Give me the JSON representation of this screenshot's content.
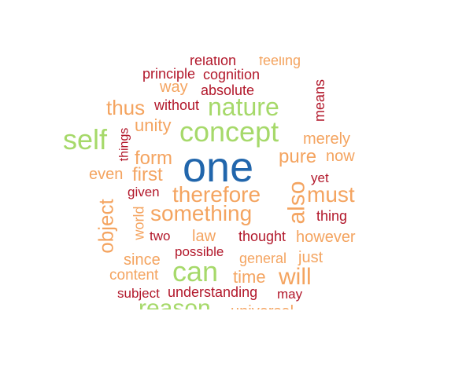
{
  "palette": {
    "dark_blue": "#2166ac",
    "green": "#a6d96a",
    "orange": "#f4a460",
    "red": "#b2182b"
  },
  "words": [
    {
      "text": "one",
      "color": "dark_blue",
      "rotated": false
    },
    {
      "text": "concept",
      "color": "green",
      "rotated": false
    },
    {
      "text": "nature",
      "color": "green",
      "rotated": false
    },
    {
      "text": "self",
      "color": "green",
      "rotated": false
    },
    {
      "text": "can",
      "color": "green",
      "rotated": false
    },
    {
      "text": "reason",
      "color": "green",
      "rotated": false
    },
    {
      "text": "will",
      "color": "orange",
      "rotated": false
    },
    {
      "text": "also",
      "color": "orange",
      "rotated": true
    },
    {
      "text": "therefore",
      "color": "orange",
      "rotated": false
    },
    {
      "text": "something",
      "color": "orange",
      "rotated": false
    },
    {
      "text": "must",
      "color": "orange",
      "rotated": false
    },
    {
      "text": "pure",
      "color": "orange",
      "rotated": false
    },
    {
      "text": "object",
      "color": "orange",
      "rotated": true
    },
    {
      "text": "thus",
      "color": "orange",
      "rotated": false
    },
    {
      "text": "form",
      "color": "orange",
      "rotated": false
    },
    {
      "text": "first",
      "color": "orange",
      "rotated": false
    },
    {
      "text": "unity",
      "color": "orange",
      "rotated": false
    },
    {
      "text": "merely",
      "color": "orange",
      "rotated": false
    },
    {
      "text": "now",
      "color": "orange",
      "rotated": false
    },
    {
      "text": "even",
      "color": "orange",
      "rotated": false
    },
    {
      "text": "way",
      "color": "orange",
      "rotated": false
    },
    {
      "text": "law",
      "color": "orange",
      "rotated": false
    },
    {
      "text": "however",
      "color": "orange",
      "rotated": false
    },
    {
      "text": "just",
      "color": "orange",
      "rotated": false
    },
    {
      "text": "general",
      "color": "orange",
      "rotated": false
    },
    {
      "text": "time",
      "color": "orange",
      "rotated": false
    },
    {
      "text": "since",
      "color": "orange",
      "rotated": false
    },
    {
      "text": "content",
      "color": "orange",
      "rotated": false
    },
    {
      "text": "world",
      "color": "orange",
      "rotated": true
    },
    {
      "text": "universal",
      "color": "orange",
      "rotated": false
    },
    {
      "text": "feeling",
      "color": "orange",
      "rotated": false
    },
    {
      "text": "relation",
      "color": "red",
      "rotated": false
    },
    {
      "text": "principle",
      "color": "red",
      "rotated": false
    },
    {
      "text": "cognition",
      "color": "red",
      "rotated": false
    },
    {
      "text": "absolute",
      "color": "red",
      "rotated": false
    },
    {
      "text": "without",
      "color": "red",
      "rotated": false
    },
    {
      "text": "means",
      "color": "red",
      "rotated": true
    },
    {
      "text": "things",
      "color": "red",
      "rotated": true
    },
    {
      "text": "yet",
      "color": "red",
      "rotated": false
    },
    {
      "text": "given",
      "color": "red",
      "rotated": false
    },
    {
      "text": "thing",
      "color": "red",
      "rotated": false
    },
    {
      "text": "two",
      "color": "red",
      "rotated": false
    },
    {
      "text": "thought",
      "color": "red",
      "rotated": false
    },
    {
      "text": "possible",
      "color": "red",
      "rotated": false
    },
    {
      "text": "subject",
      "color": "red",
      "rotated": false
    },
    {
      "text": "understanding",
      "color": "red",
      "rotated": false
    },
    {
      "text": "may",
      "color": "red",
      "rotated": false
    }
  ]
}
